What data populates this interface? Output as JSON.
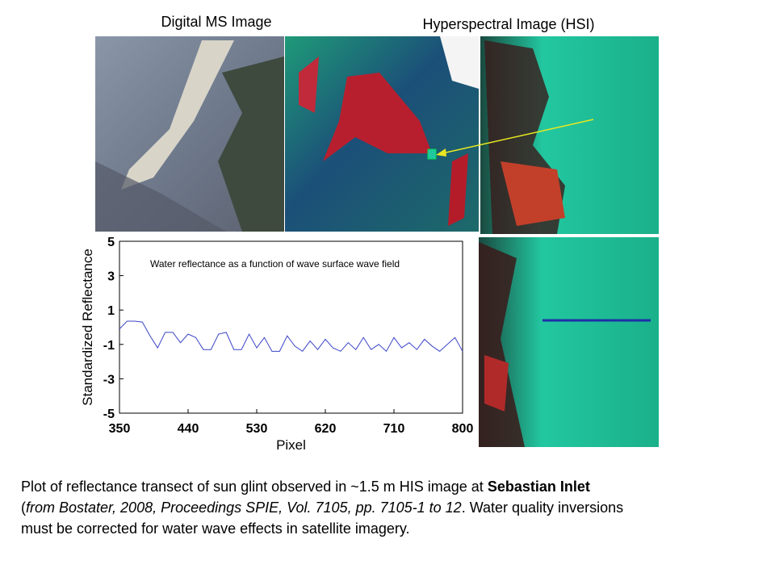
{
  "headers": {
    "ms": "Digital MS Image",
    "hsi": "Hyperspectral Image (HSI)"
  },
  "chart_data": {
    "type": "line",
    "annotation": "Water reflectance as a function of wave surface wave field",
    "x_label": "Pixel",
    "y_label": "Standardized Reflectance",
    "x": [
      350,
      360,
      370,
      380,
      390,
      400,
      410,
      420,
      430,
      440,
      450,
      460,
      470,
      480,
      490,
      500,
      510,
      520,
      530,
      540,
      550,
      560,
      570,
      580,
      590,
      600,
      610,
      620,
      630,
      640,
      650,
      660,
      670,
      680,
      690,
      700,
      710,
      720,
      730,
      740,
      750,
      760,
      770,
      780,
      790,
      800
    ],
    "series": [
      {
        "color": "#3b45c8",
        "values": [
          -0.1,
          0.35,
          0.35,
          0.3,
          -0.5,
          -1.2,
          -0.3,
          -0.3,
          -0.9,
          -0.4,
          -0.6,
          -1.3,
          -1.3,
          -0.4,
          -0.3,
          -1.3,
          -1.3,
          -0.4,
          -1.2,
          -0.6,
          -1.4,
          -1.4,
          -0.5,
          -1.1,
          -1.4,
          -0.8,
          -1.3,
          -0.7,
          -1.2,
          -1.4,
          -0.9,
          -1.3,
          -0.6,
          -1.3,
          -1.0,
          -1.4,
          -0.6,
          -1.2,
          -0.9,
          -1.3,
          -0.7,
          -1.1,
          -1.4,
          -1.0,
          -0.6,
          -1.4
        ]
      }
    ],
    "xlim": [
      350,
      800
    ],
    "xticks": [
      350,
      440,
      530,
      620,
      710,
      800
    ],
    "ylim": [
      -5,
      5
    ],
    "yticks": [
      5,
      3,
      1,
      -1,
      -3,
      -5
    ]
  },
  "caption": {
    "parts": [
      "Plot of reflectance transect of sun glint observed in ~1.5 m HIS image at ",
      "Sebastian Inlet",
      "(",
      "from Bostater, 2008, Proceedings SPIE, Vol. 7105, pp. 7105-1 to 12",
      ". Water quality inversions",
      "must be corrected for water wave effects in satellite imagery."
    ]
  }
}
